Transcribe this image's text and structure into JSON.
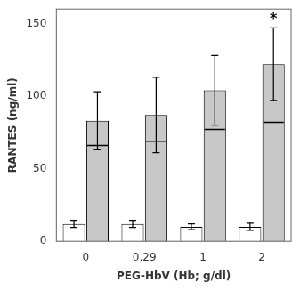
{
  "chart_data": {
    "type": "bar",
    "categories": [
      "0",
      "0.29",
      "1",
      "2"
    ],
    "series": [
      {
        "color": "#ffffff",
        "values": [
          12.0,
          12.0,
          10.0,
          10.0
        ],
        "errors": [
          2.5,
          2.5,
          2.0,
          2.5
        ]
      },
      {
        "color": "#c8c8c8",
        "values": [
          83.0,
          87.0,
          104.0,
          122.0
        ],
        "errors": [
          20.0,
          26.0,
          24.0,
          25.0
        ],
        "medians": [
          66.0,
          69.0,
          77.0,
          82.0
        ]
      }
    ],
    "xlabel": "PEG-HbV (Hb; g/dl)",
    "ylabel": "RANTES (ng/ml)",
    "ylim": [
      0,
      160
    ],
    "yticks": [
      0,
      50,
      100,
      150
    ],
    "grid": false,
    "annotations": [
      {
        "text": "*",
        "x": "2"
      }
    ]
  }
}
